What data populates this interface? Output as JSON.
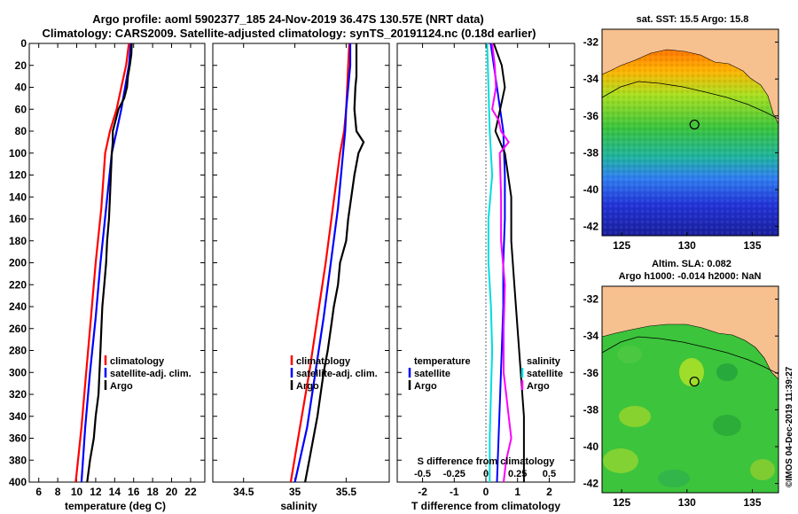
{
  "header": {
    "line1": "Argo profile: aoml 5902377_185 24-Nov-2019 36.47S 130.57E (NRT data)",
    "line2": "Climatology: CARS2009. Satellite-adjusted climatology: synTS_20191124.nc (0.18d earlier)"
  },
  "colors": {
    "climatology": "#ff0000",
    "satellite": "#0000ff",
    "argo": "#000000",
    "sal_clim": "#ff00ff",
    "sal_sat": "#00dddd",
    "land": "#f7c08f"
  },
  "watermark": "©IMOS 04-Dec-2019 11:39:27",
  "chart_data": [
    {
      "type": "line",
      "id": "temperature",
      "xlabel": "temperature (deg C)",
      "ylabel": "",
      "xlim": [
        5,
        23.5
      ],
      "ylim": [
        400,
        0
      ],
      "xticks": [
        6,
        8,
        10,
        12,
        14,
        16,
        18,
        20,
        22
      ],
      "yticks": [
        0,
        20,
        40,
        60,
        80,
        100,
        120,
        140,
        160,
        180,
        200,
        220,
        240,
        260,
        280,
        300,
        320,
        340,
        360,
        380,
        400
      ],
      "legend": [
        "climatology",
        "satellite-adj. clim.",
        "Argo"
      ],
      "series": [
        {
          "name": "climatology",
          "depth": [
            0,
            20,
            40,
            60,
            80,
            100,
            150,
            200,
            250,
            300,
            350,
            400
          ],
          "values": [
            15.5,
            15.2,
            14.7,
            14.2,
            13.5,
            13.0,
            12.6,
            12.0,
            11.5,
            11.0,
            10.5,
            9.9
          ]
        },
        {
          "name": "satellite-adj. clim.",
          "depth": [
            0,
            20,
            40,
            60,
            80,
            100,
            150,
            200,
            250,
            300,
            350,
            400
          ],
          "values": [
            15.7,
            15.5,
            15.1,
            14.7,
            14.2,
            13.7,
            13.1,
            12.5,
            12.0,
            11.4,
            10.9,
            10.5
          ]
        },
        {
          "name": "Argo",
          "depth": [
            0,
            10,
            20,
            30,
            40,
            50,
            60,
            70,
            80,
            90,
            100,
            120,
            140,
            160,
            180,
            200,
            220,
            240,
            260,
            280,
            300,
            320,
            340,
            360,
            380,
            400
          ],
          "values": [
            15.8,
            15.75,
            15.6,
            15.4,
            15.3,
            15.0,
            14.4,
            14.1,
            13.8,
            13.8,
            13.7,
            13.6,
            13.5,
            13.4,
            13.2,
            13.1,
            12.9,
            12.7,
            12.6,
            12.5,
            12.4,
            12.3,
            12.0,
            11.8,
            11.4,
            11.1
          ]
        }
      ]
    },
    {
      "type": "line",
      "id": "salinity",
      "xlabel": "salinity",
      "xlim": [
        34.2,
        35.92
      ],
      "ylim": [
        400,
        0
      ],
      "xticks": [
        34.5,
        35,
        35.5
      ],
      "xticklabels": [
        "34.5",
        "35",
        "35.5"
      ],
      "legend": [
        "climatology",
        "satellite-adj. clim.",
        "Argo"
      ],
      "series": [
        {
          "name": "climatology",
          "depth": [
            0,
            20,
            40,
            60,
            80,
            100,
            150,
            200,
            250,
            300,
            350,
            400
          ],
          "values": [
            35.53,
            35.52,
            35.51,
            35.5,
            35.48,
            35.44,
            35.37,
            35.3,
            35.22,
            35.14,
            35.05,
            34.96
          ]
        },
        {
          "name": "satellite-adj. clim.",
          "depth": [
            0,
            20,
            40,
            60,
            80,
            100,
            150,
            200,
            250,
            300,
            350,
            400
          ],
          "values": [
            35.54,
            35.54,
            35.52,
            35.5,
            35.49,
            35.47,
            35.42,
            35.35,
            35.28,
            35.2,
            35.12,
            35.0
          ]
        },
        {
          "name": "Argo",
          "depth": [
            0,
            10,
            20,
            30,
            40,
            60,
            80,
            90,
            100,
            120,
            140,
            160,
            180,
            200,
            220,
            240,
            260,
            280,
            300,
            320,
            340,
            360,
            380,
            400
          ],
          "values": [
            35.6,
            35.6,
            35.6,
            35.6,
            35.59,
            35.58,
            35.6,
            35.67,
            35.62,
            35.58,
            35.55,
            35.52,
            35.5,
            35.44,
            35.42,
            35.38,
            35.35,
            35.32,
            35.28,
            35.25,
            35.22,
            35.18,
            35.14,
            35.1
          ]
        }
      ]
    },
    {
      "type": "line",
      "id": "difference",
      "xlabel": "T difference from climatology",
      "xlabel2": "S difference from climatology",
      "xlim": [
        -2.8,
        2.8
      ],
      "ylim": [
        400,
        0
      ],
      "xticks": [
        -2,
        -1,
        0,
        1,
        2
      ],
      "xticks2": [
        -0.5,
        -0.25,
        0,
        0.25,
        0.5
      ],
      "xticklabels2": [
        "-0.5",
        "-0.25",
        "0",
        "0.25",
        "0.5"
      ],
      "legend_t": [
        "temperature",
        "satellite",
        "Argo"
      ],
      "legend_s": [
        "salinity",
        "satellite",
        "Argo"
      ],
      "series": [
        {
          "name": "T satellite",
          "depth": [
            0,
            40,
            80,
            120,
            160,
            200,
            240,
            280,
            320,
            360,
            400
          ],
          "values": [
            0.15,
            0.35,
            0.55,
            0.6,
            0.6,
            0.55,
            0.55,
            0.5,
            0.45,
            0.4,
            0.35
          ]
        },
        {
          "name": "T Argo",
          "depth": [
            0,
            20,
            40,
            60,
            80,
            100,
            140,
            180,
            220,
            260,
            300,
            340,
            380,
            400
          ],
          "values": [
            0.25,
            0.5,
            0.6,
            0.45,
            0.3,
            0.6,
            0.8,
            0.8,
            0.9,
            1.0,
            1.1,
            1.2,
            1.2,
            1.2
          ]
        },
        {
          "name": "S satellite",
          "depth": [
            0,
            40,
            80,
            120,
            160,
            200,
            240,
            280,
            320,
            360,
            400
          ],
          "values": [
            0.01,
            0.02,
            0.03,
            0.05,
            0.02,
            0.02,
            0.04,
            0.05,
            0.04,
            0.03,
            0.03
          ]
        },
        {
          "name": "S Argo",
          "depth": [
            0,
            20,
            40,
            60,
            70,
            80,
            90,
            100,
            140,
            180,
            220,
            260,
            300,
            320,
            340,
            360,
            380,
            400
          ],
          "values": [
            0.05,
            0.07,
            0.08,
            0.05,
            0.1,
            0.12,
            0.18,
            0.11,
            0.12,
            0.12,
            0.15,
            0.14,
            0.14,
            0.16,
            0.18,
            0.2,
            0.16,
            0.14
          ]
        }
      ]
    },
    {
      "type": "heatmap",
      "id": "sst_map",
      "title": "sat. SST: 15.5 Argo: 15.8",
      "xlim": [
        123.5,
        137.0
      ],
      "ylim": [
        -42.5,
        -31.3
      ],
      "xticks": [
        125,
        130,
        135
      ],
      "yticks": [
        -32,
        -34,
        -36,
        -38,
        -40,
        -42
      ],
      "float_position": [
        130.57,
        -36.47
      ]
    },
    {
      "type": "heatmap",
      "id": "sla_map",
      "title": "Altim. SLA: 0.082",
      "title2": "Argo h1000: -0.014 h2000: NaN",
      "xlim": [
        123.5,
        137.0
      ],
      "ylim": [
        -42.5,
        -31.3
      ],
      "xticks": [
        125,
        130,
        135
      ],
      "yticks": [
        -32,
        -34,
        -36,
        -38,
        -40,
        -42
      ],
      "float_position": [
        130.57,
        -36.47
      ]
    }
  ]
}
